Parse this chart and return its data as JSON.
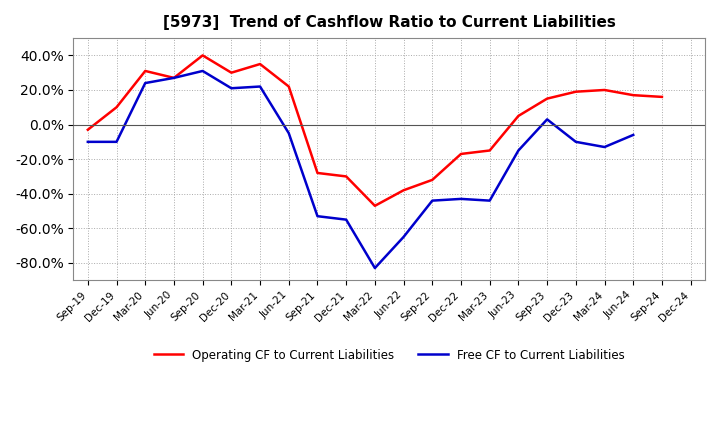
{
  "title": "[5973]  Trend of Cashflow Ratio to Current Liabilities",
  "x_labels": [
    "Sep-19",
    "Dec-19",
    "Mar-20",
    "Jun-20",
    "Sep-20",
    "Dec-20",
    "Mar-21",
    "Jun-21",
    "Sep-21",
    "Dec-21",
    "Mar-22",
    "Jun-22",
    "Sep-22",
    "Dec-22",
    "Mar-23",
    "Jun-23",
    "Sep-23",
    "Dec-23",
    "Mar-24",
    "Jun-24",
    "Sep-24",
    "Dec-24"
  ],
  "operating_cf": [
    -3.0,
    10.0,
    31.0,
    27.0,
    40.0,
    30.0,
    35.0,
    22.0,
    -28.0,
    -30.0,
    -47.0,
    -38.0,
    -32.0,
    -17.0,
    -15.0,
    5.0,
    15.0,
    19.0,
    20.0,
    17.0,
    16.0,
    null
  ],
  "free_cf": [
    -10.0,
    -10.0,
    24.0,
    27.0,
    31.0,
    21.0,
    22.0,
    -5.0,
    -53.0,
    -55.0,
    -83.0,
    -65.0,
    -44.0,
    -43.0,
    -44.0,
    -15.0,
    3.0,
    -10.0,
    -13.0,
    -6.0,
    null,
    null
  ],
  "ylim": [
    -90,
    50
  ],
  "yticks": [
    -80.0,
    -60.0,
    -40.0,
    -20.0,
    0.0,
    20.0,
    40.0
  ],
  "operating_color": "#FF0000",
  "free_color": "#0000CC",
  "background_color": "#FFFFFF",
  "grid_color": "#AAAAAA",
  "legend_operating": "Operating CF to Current Liabilities",
  "legend_free": "Free CF to Current Liabilities"
}
